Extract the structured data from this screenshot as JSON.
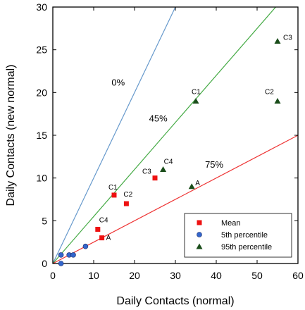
{
  "chart_data": {
    "type": "scatter",
    "title": "",
    "xlabel": "Daily Contacts (normal)",
    "ylabel": "Daily Contacts (new normal)",
    "xlim": [
      0,
      60
    ],
    "ylim": [
      0,
      30
    ],
    "xticks": [
      0,
      10,
      20,
      30,
      40,
      50,
      60
    ],
    "yticks": [
      0,
      5,
      10,
      15,
      20,
      25,
      30
    ],
    "grid": false,
    "legend_position": "bottom-right",
    "reference_lines": [
      {
        "label": "0%",
        "slope": 1.0,
        "color": "#6699cc",
        "label_x": 16,
        "label_y": 20.8
      },
      {
        "label": "45%",
        "slope": 0.55,
        "color": "#44aa44",
        "label_x": 25.8,
        "label_y": 16.6
      },
      {
        "label": "75%",
        "slope": 0.25,
        "color": "#ee3333",
        "label_x": 39.5,
        "label_y": 11.2
      }
    ],
    "series": [
      {
        "name": "Mean",
        "marker": "square",
        "color": "#ee1111",
        "points": [
          {
            "x": 12,
            "y": 3,
            "label": "A"
          },
          {
            "x": 11,
            "y": 4,
            "label": "C4"
          },
          {
            "x": 15,
            "y": 8,
            "label": "C1"
          },
          {
            "x": 18,
            "y": 7,
            "label": "C2"
          },
          {
            "x": 25,
            "y": 10,
            "label": "C3"
          }
        ]
      },
      {
        "name": "5th percentile",
        "marker": "circle",
        "color": "#3366cc",
        "points": [
          {
            "x": 2,
            "y": 0
          },
          {
            "x": 2,
            "y": 1
          },
          {
            "x": 4,
            "y": 1
          },
          {
            "x": 5,
            "y": 1
          },
          {
            "x": 8,
            "y": 2
          }
        ]
      },
      {
        "name": "95th percentile",
        "marker": "triangle",
        "color": "#1a4d1a",
        "points": [
          {
            "x": 34,
            "y": 9,
            "label": "A"
          },
          {
            "x": 27,
            "y": 11,
            "label": "C4"
          },
          {
            "x": 35,
            "y": 19,
            "label": "C1"
          },
          {
            "x": 55,
            "y": 19,
            "label": "C2"
          },
          {
            "x": 55,
            "y": 26,
            "label": "C3"
          }
        ]
      }
    ]
  }
}
